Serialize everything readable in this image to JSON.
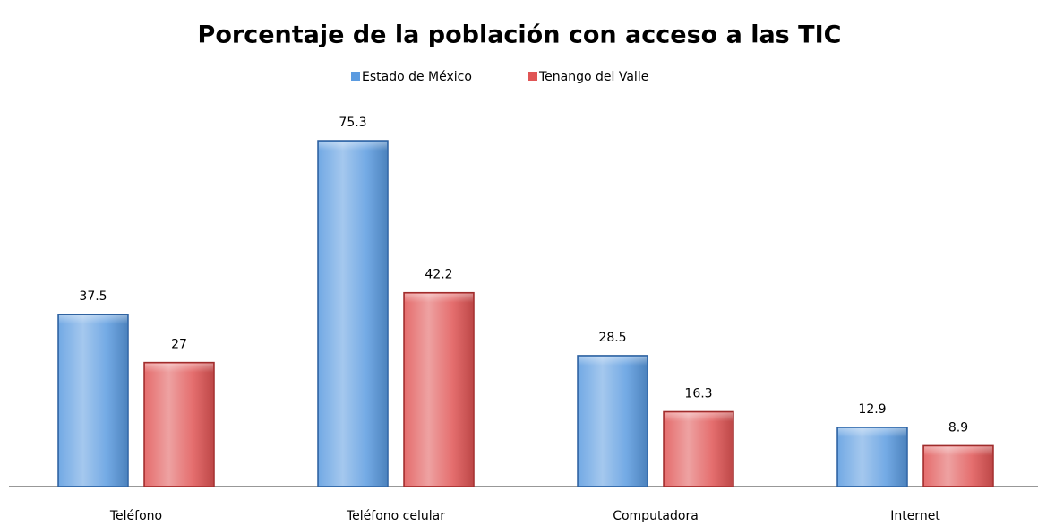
{
  "chart_data": {
    "type": "bar",
    "title": "Porcentaje de la población con acceso a las TIC",
    "categories": [
      "Teléfono",
      "Teléfono celular",
      "Computadora",
      "Internet"
    ],
    "series": [
      {
        "name": "Estado de México",
        "color": "#5b9be0",
        "values": [
          37.5,
          75.3,
          28.5,
          12.9
        ]
      },
      {
        "name": "Tenango del Valle",
        "color": "#e05555",
        "values": [
          27,
          42.2,
          16.3,
          8.9
        ]
      }
    ],
    "legend": "top"
  }
}
